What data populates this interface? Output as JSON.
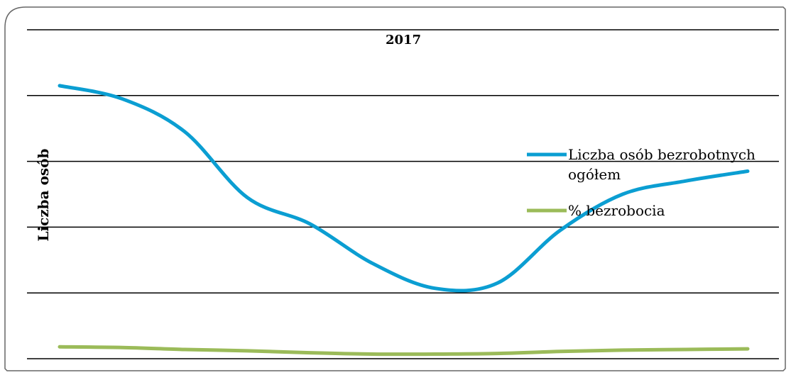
{
  "chart_data": {
    "type": "line",
    "title": "2017",
    "ylabel": "Liczba osób",
    "xlabel": "",
    "x": [
      1,
      2,
      3,
      4,
      5,
      6,
      7,
      8,
      9,
      10,
      11,
      12
    ],
    "ylim": [
      0,
      5
    ],
    "grid": true,
    "legend_position": "right",
    "series": [
      {
        "name": "Liczba osób bezrobotnych ogółem",
        "values": [
          4.15,
          3.95,
          3.45,
          2.45,
          2.05,
          1.45,
          1.07,
          1.15,
          1.95,
          2.5,
          2.7,
          2.85
        ],
        "color": "#0B9ED2"
      },
      {
        "name": "% bezrobocia",
        "values": [
          0.18,
          0.17,
          0.14,
          0.12,
          0.09,
          0.07,
          0.07,
          0.08,
          0.11,
          0.13,
          0.14,
          0.15
        ],
        "color": "#9BBB59"
      }
    ],
    "legend": [
      {
        "line1": "Liczba osób bezrobotnych",
        "line2": "ogółem",
        "color": "#0B9ED2"
      },
      {
        "line1": "% bezrobocia",
        "line2": "",
        "color": "#9BBB59"
      }
    ]
  }
}
